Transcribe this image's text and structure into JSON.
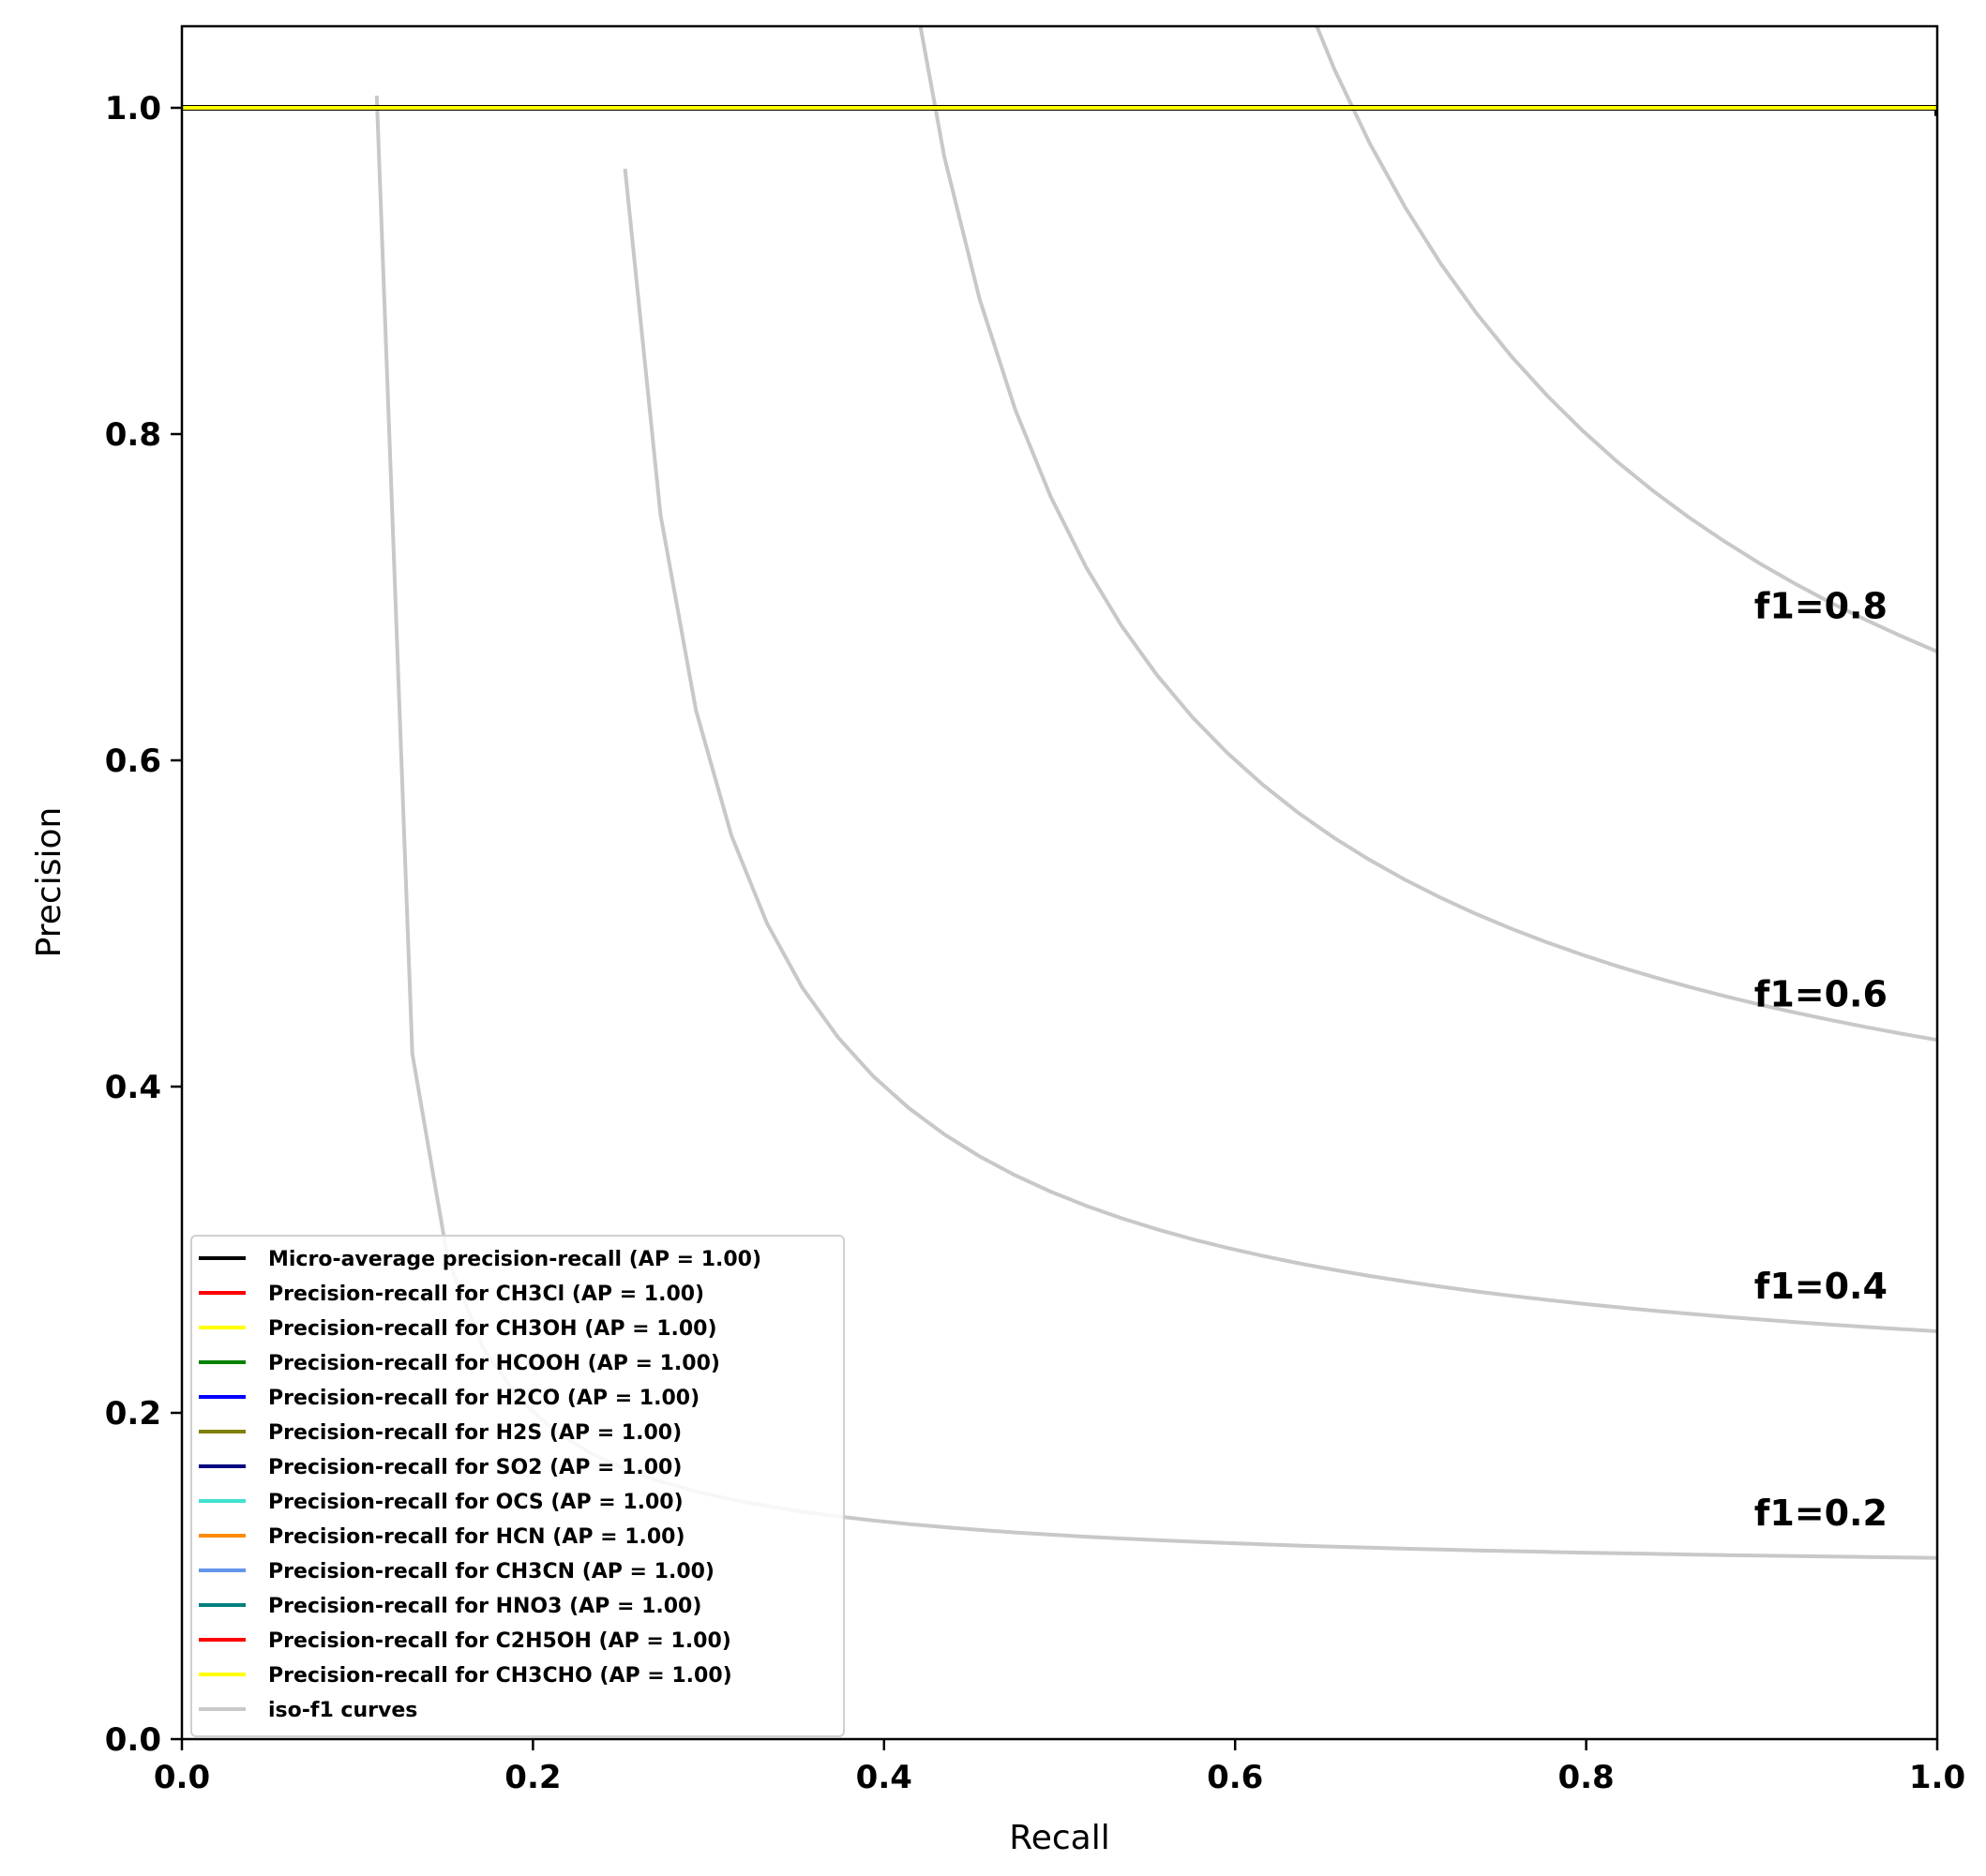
{
  "chart_data": {
    "type": "line",
    "title": "",
    "xlabel": "Recall",
    "ylabel": "Precision",
    "xlim": [
      0.0,
      1.0
    ],
    "ylim": [
      0.0,
      1.05
    ],
    "x_ticks": [
      "0.0",
      "0.2",
      "0.4",
      "0.6",
      "0.8",
      "1.0"
    ],
    "y_ticks": [
      "0.0",
      "0.2",
      "0.4",
      "0.6",
      "0.8",
      "1.0"
    ],
    "grid": false,
    "legend_position": "lower-left",
    "series": [
      {
        "name": "Micro-average precision-recall (AP = 1.00)",
        "color": "#000000",
        "x": [
          0.0,
          1.0,
          1.0
        ],
        "y": [
          1.0,
          1.0,
          0.995
        ]
      },
      {
        "name": "Precision-recall for CH3Cl (AP = 1.00)",
        "color": "#ff0000",
        "x": [
          0.0,
          1.0
        ],
        "y": [
          1.0,
          1.0
        ]
      },
      {
        "name": "Precision-recall for CH3OH (AP = 1.00)",
        "color": "#ffff00",
        "x": [
          0.0,
          1.0
        ],
        "y": [
          1.0,
          1.0
        ]
      },
      {
        "name": "Precision-recall for HCOOH (AP = 1.00)",
        "color": "#008000",
        "x": [
          0.0,
          1.0
        ],
        "y": [
          1.0,
          1.0
        ]
      },
      {
        "name": "Precision-recall for H2CO (AP = 1.00)",
        "color": "#0000ff",
        "x": [
          0.0,
          1.0
        ],
        "y": [
          1.0,
          1.0
        ]
      },
      {
        "name": "Precision-recall for H2S (AP = 1.00)",
        "color": "#808000",
        "x": [
          0.0,
          1.0
        ],
        "y": [
          1.0,
          1.0
        ]
      },
      {
        "name": "Precision-recall for SO2 (AP = 1.00)",
        "color": "#000080",
        "x": [
          0.0,
          1.0
        ],
        "y": [
          1.0,
          1.0
        ]
      },
      {
        "name": "Precision-recall for OCS (AP = 1.00)",
        "color": "#40e0d0",
        "x": [
          0.0,
          1.0
        ],
        "y": [
          1.0,
          1.0
        ]
      },
      {
        "name": "Precision-recall for HCN (AP = 1.00)",
        "color": "#ff8c00",
        "x": [
          0.0,
          1.0
        ],
        "y": [
          1.0,
          1.0
        ]
      },
      {
        "name": "Precision-recall for CH3CN (AP = 1.00)",
        "color": "#6495ed",
        "x": [
          0.0,
          1.0
        ],
        "y": [
          1.0,
          1.0
        ]
      },
      {
        "name": "Precision-recall for HNO3 (AP = 1.00)",
        "color": "#008080",
        "x": [
          0.0,
          1.0
        ],
        "y": [
          1.0,
          1.0
        ]
      },
      {
        "name": "Precision-recall for C2H5OH (AP = 1.00)",
        "color": "#ff0000",
        "x": [
          0.0,
          1.0
        ],
        "y": [
          1.0,
          1.0
        ]
      },
      {
        "name": "Precision-recall for CH3CHO (AP = 1.00)",
        "color": "#ffff00",
        "x": [
          0.0,
          1.0
        ],
        "y": [
          1.0,
          1.0
        ]
      }
    ],
    "iso_f1": {
      "legend_label": "iso-f1 curves",
      "color": "#c8c8c8",
      "values": [
        0.2,
        0.4,
        0.6,
        0.8
      ],
      "labels": [
        "f1=0.2",
        "f1=0.4",
        "f1=0.6",
        "f1=0.8"
      ],
      "label_anchor": {
        "x": 0.9,
        "y_at_recall_1": [
          0.111,
          0.25,
          0.429,
          0.667
        ]
      }
    }
  }
}
